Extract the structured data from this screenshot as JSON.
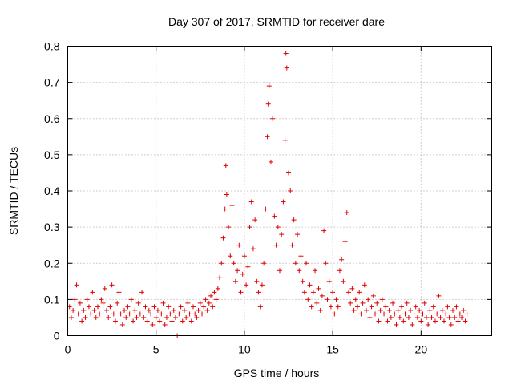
{
  "chart_data": {
    "type": "scatter",
    "title": "Day 307 of 2017, SRMTID for receiver dare",
    "xlabel": "GPS time / hours",
    "ylabel": "SRMTID / TECUs",
    "xlim": [
      0,
      24
    ],
    "ylim": [
      0,
      0.8
    ],
    "xticks": [
      "0",
      "5",
      "10",
      "15",
      "20"
    ],
    "yticks": [
      "0",
      "0.1",
      "0.2",
      "0.3",
      "0.4",
      "0.5",
      "0.6",
      "0.7",
      "0.8"
    ],
    "grid": true,
    "marker": "+",
    "color": "#e00000",
    "series": [
      {
        "name": "SRMTID",
        "points": [
          [
            0.0,
            0.06
          ],
          [
            0.1,
            0.08
          ],
          [
            0.2,
            0.05
          ],
          [
            0.3,
            0.07
          ],
          [
            0.4,
            0.1
          ],
          [
            0.5,
            0.14
          ],
          [
            0.6,
            0.06
          ],
          [
            0.7,
            0.09
          ],
          [
            0.8,
            0.04
          ],
          [
            0.9,
            0.07
          ],
          [
            1.0,
            0.05
          ],
          [
            1.1,
            0.1
          ],
          [
            1.2,
            0.08
          ],
          [
            1.3,
            0.06
          ],
          [
            1.4,
            0.12
          ],
          [
            1.5,
            0.07
          ],
          [
            1.6,
            0.05
          ],
          [
            1.7,
            0.08
          ],
          [
            1.8,
            0.06
          ],
          [
            1.9,
            0.1
          ],
          [
            2.0,
            0.09
          ],
          [
            2.1,
            0.13
          ],
          [
            2.2,
            0.07
          ],
          [
            2.3,
            0.05
          ],
          [
            2.4,
            0.08
          ],
          [
            2.5,
            0.14
          ],
          [
            2.6,
            0.06
          ],
          [
            2.7,
            0.04
          ],
          [
            2.8,
            0.09
          ],
          [
            2.9,
            0.12
          ],
          [
            3.0,
            0.06
          ],
          [
            3.1,
            0.03
          ],
          [
            3.2,
            0.07
          ],
          [
            3.3,
            0.05
          ],
          [
            3.4,
            0.08
          ],
          [
            3.5,
            0.06
          ],
          [
            3.6,
            0.1
          ],
          [
            3.7,
            0.04
          ],
          [
            3.8,
            0.07
          ],
          [
            3.9,
            0.05
          ],
          [
            4.0,
            0.09
          ],
          [
            4.1,
            0.06
          ],
          [
            4.2,
            0.12
          ],
          [
            4.3,
            0.05
          ],
          [
            4.4,
            0.08
          ],
          [
            4.5,
            0.04
          ],
          [
            4.6,
            0.07
          ],
          [
            4.7,
            0.06
          ],
          [
            4.8,
            0.03
          ],
          [
            4.9,
            0.08
          ],
          [
            5.0,
            0.05
          ],
          [
            5.1,
            0.07
          ],
          [
            5.2,
            0.04
          ],
          [
            5.3,
            0.06
          ],
          [
            5.4,
            0.09
          ],
          [
            5.5,
            0.03
          ],
          [
            5.6,
            0.05
          ],
          [
            5.7,
            0.08
          ],
          [
            5.8,
            0.06
          ],
          [
            5.9,
            0.04
          ],
          [
            6.0,
            0.07
          ],
          [
            6.1,
            0.05
          ],
          [
            6.2,
            0.0
          ],
          [
            6.3,
            0.06
          ],
          [
            6.4,
            0.08
          ],
          [
            6.5,
            0.04
          ],
          [
            6.6,
            0.07
          ],
          [
            6.7,
            0.05
          ],
          [
            6.8,
            0.09
          ],
          [
            6.9,
            0.06
          ],
          [
            7.0,
            0.04
          ],
          [
            7.1,
            0.08
          ],
          [
            7.2,
            0.06
          ],
          [
            7.3,
            0.05
          ],
          [
            7.4,
            0.07
          ],
          [
            7.5,
            0.09
          ],
          [
            7.6,
            0.06
          ],
          [
            7.7,
            0.08
          ],
          [
            7.8,
            0.1
          ],
          [
            7.9,
            0.07
          ],
          [
            8.0,
            0.09
          ],
          [
            8.1,
            0.11
          ],
          [
            8.2,
            0.08
          ],
          [
            8.3,
            0.12
          ],
          [
            8.4,
            0.1
          ],
          [
            8.5,
            0.13
          ],
          [
            8.6,
            0.16
          ],
          [
            8.7,
            0.2
          ],
          [
            8.8,
            0.27
          ],
          [
            8.9,
            0.35
          ],
          [
            8.95,
            0.47
          ],
          [
            9.0,
            0.39
          ],
          [
            9.1,
            0.3
          ],
          [
            9.2,
            0.22
          ],
          [
            9.3,
            0.36
          ],
          [
            9.4,
            0.2
          ],
          [
            9.5,
            0.15
          ],
          [
            9.6,
            0.18
          ],
          [
            9.7,
            0.25
          ],
          [
            9.8,
            0.12
          ],
          [
            9.9,
            0.17
          ],
          [
            10.0,
            0.22
          ],
          [
            10.1,
            0.14
          ],
          [
            10.2,
            0.19
          ],
          [
            10.3,
            0.3
          ],
          [
            10.4,
            0.37
          ],
          [
            10.5,
            0.24
          ],
          [
            10.6,
            0.32
          ],
          [
            10.7,
            0.15
          ],
          [
            10.8,
            0.12
          ],
          [
            10.9,
            0.08
          ],
          [
            11.0,
            0.14
          ],
          [
            11.1,
            0.2
          ],
          [
            11.2,
            0.35
          ],
          [
            11.3,
            0.55
          ],
          [
            11.35,
            0.64
          ],
          [
            11.4,
            0.69
          ],
          [
            11.5,
            0.48
          ],
          [
            11.6,
            0.6
          ],
          [
            11.7,
            0.33
          ],
          [
            11.8,
            0.25
          ],
          [
            11.9,
            0.3
          ],
          [
            12.0,
            0.18
          ],
          [
            12.1,
            0.28
          ],
          [
            12.2,
            0.37
          ],
          [
            12.3,
            0.54
          ],
          [
            12.35,
            0.78
          ],
          [
            12.4,
            0.74
          ],
          [
            12.5,
            0.45
          ],
          [
            12.6,
            0.4
          ],
          [
            12.7,
            0.25
          ],
          [
            12.8,
            0.32
          ],
          [
            12.9,
            0.2
          ],
          [
            13.0,
            0.28
          ],
          [
            13.1,
            0.18
          ],
          [
            13.2,
            0.22
          ],
          [
            13.3,
            0.15
          ],
          [
            13.4,
            0.12
          ],
          [
            13.5,
            0.2
          ],
          [
            13.6,
            0.1
          ],
          [
            13.7,
            0.14
          ],
          [
            13.8,
            0.08
          ],
          [
            13.9,
            0.12
          ],
          [
            14.0,
            0.18
          ],
          [
            14.1,
            0.09
          ],
          [
            14.2,
            0.13
          ],
          [
            14.3,
            0.07
          ],
          [
            14.4,
            0.11
          ],
          [
            14.5,
            0.29
          ],
          [
            14.6,
            0.2
          ],
          [
            14.7,
            0.1
          ],
          [
            14.8,
            0.15
          ],
          [
            14.9,
            0.08
          ],
          [
            15.0,
            0.12
          ],
          [
            15.1,
            0.06
          ],
          [
            15.2,
            0.1
          ],
          [
            15.3,
            0.08
          ],
          [
            15.4,
            0.18
          ],
          [
            15.5,
            0.21
          ],
          [
            15.6,
            0.15
          ],
          [
            15.7,
            0.26
          ],
          [
            15.8,
            0.34
          ],
          [
            15.9,
            0.12
          ],
          [
            16.0,
            0.09
          ],
          [
            16.1,
            0.13
          ],
          [
            16.2,
            0.07
          ],
          [
            16.3,
            0.1
          ],
          [
            16.4,
            0.08
          ],
          [
            16.5,
            0.12
          ],
          [
            16.6,
            0.06
          ],
          [
            16.7,
            0.09
          ],
          [
            16.8,
            0.14
          ],
          [
            16.9,
            0.07
          ],
          [
            17.0,
            0.1
          ],
          [
            17.1,
            0.05
          ],
          [
            17.2,
            0.08
          ],
          [
            17.3,
            0.11
          ],
          [
            17.4,
            0.06
          ],
          [
            17.5,
            0.09
          ],
          [
            17.6,
            0.04
          ],
          [
            17.7,
            0.07
          ],
          [
            17.8,
            0.1
          ],
          [
            17.9,
            0.06
          ],
          [
            18.0,
            0.08
          ],
          [
            18.1,
            0.04
          ],
          [
            18.2,
            0.07
          ],
          [
            18.3,
            0.05
          ],
          [
            18.4,
            0.09
          ],
          [
            18.5,
            0.06
          ],
          [
            18.6,
            0.03
          ],
          [
            18.7,
            0.07
          ],
          [
            18.8,
            0.05
          ],
          [
            18.9,
            0.08
          ],
          [
            19.0,
            0.04
          ],
          [
            19.1,
            0.06
          ],
          [
            19.2,
            0.09
          ],
          [
            19.3,
            0.05
          ],
          [
            19.4,
            0.07
          ],
          [
            19.5,
            0.03
          ],
          [
            19.6,
            0.06
          ],
          [
            19.7,
            0.08
          ],
          [
            19.8,
            0.05
          ],
          [
            19.9,
            0.07
          ],
          [
            20.0,
            0.04
          ],
          [
            20.1,
            0.06
          ],
          [
            20.2,
            0.09
          ],
          [
            20.3,
            0.05
          ],
          [
            20.4,
            0.03
          ],
          [
            20.5,
            0.07
          ],
          [
            20.6,
            0.05
          ],
          [
            20.7,
            0.08
          ],
          [
            20.8,
            0.04
          ],
          [
            20.9,
            0.06
          ],
          [
            21.0,
            0.11
          ],
          [
            21.1,
            0.05
          ],
          [
            21.2,
            0.07
          ],
          [
            21.3,
            0.04
          ],
          [
            21.4,
            0.06
          ],
          [
            21.5,
            0.08
          ],
          [
            21.6,
            0.05
          ],
          [
            21.7,
            0.03
          ],
          [
            21.8,
            0.07
          ],
          [
            21.9,
            0.05
          ],
          [
            22.0,
            0.08
          ],
          [
            22.1,
            0.04
          ],
          [
            22.2,
            0.06
          ],
          [
            22.3,
            0.05
          ],
          [
            22.4,
            0.07
          ],
          [
            22.5,
            0.04
          ],
          [
            22.6,
            0.06
          ]
        ]
      }
    ]
  }
}
